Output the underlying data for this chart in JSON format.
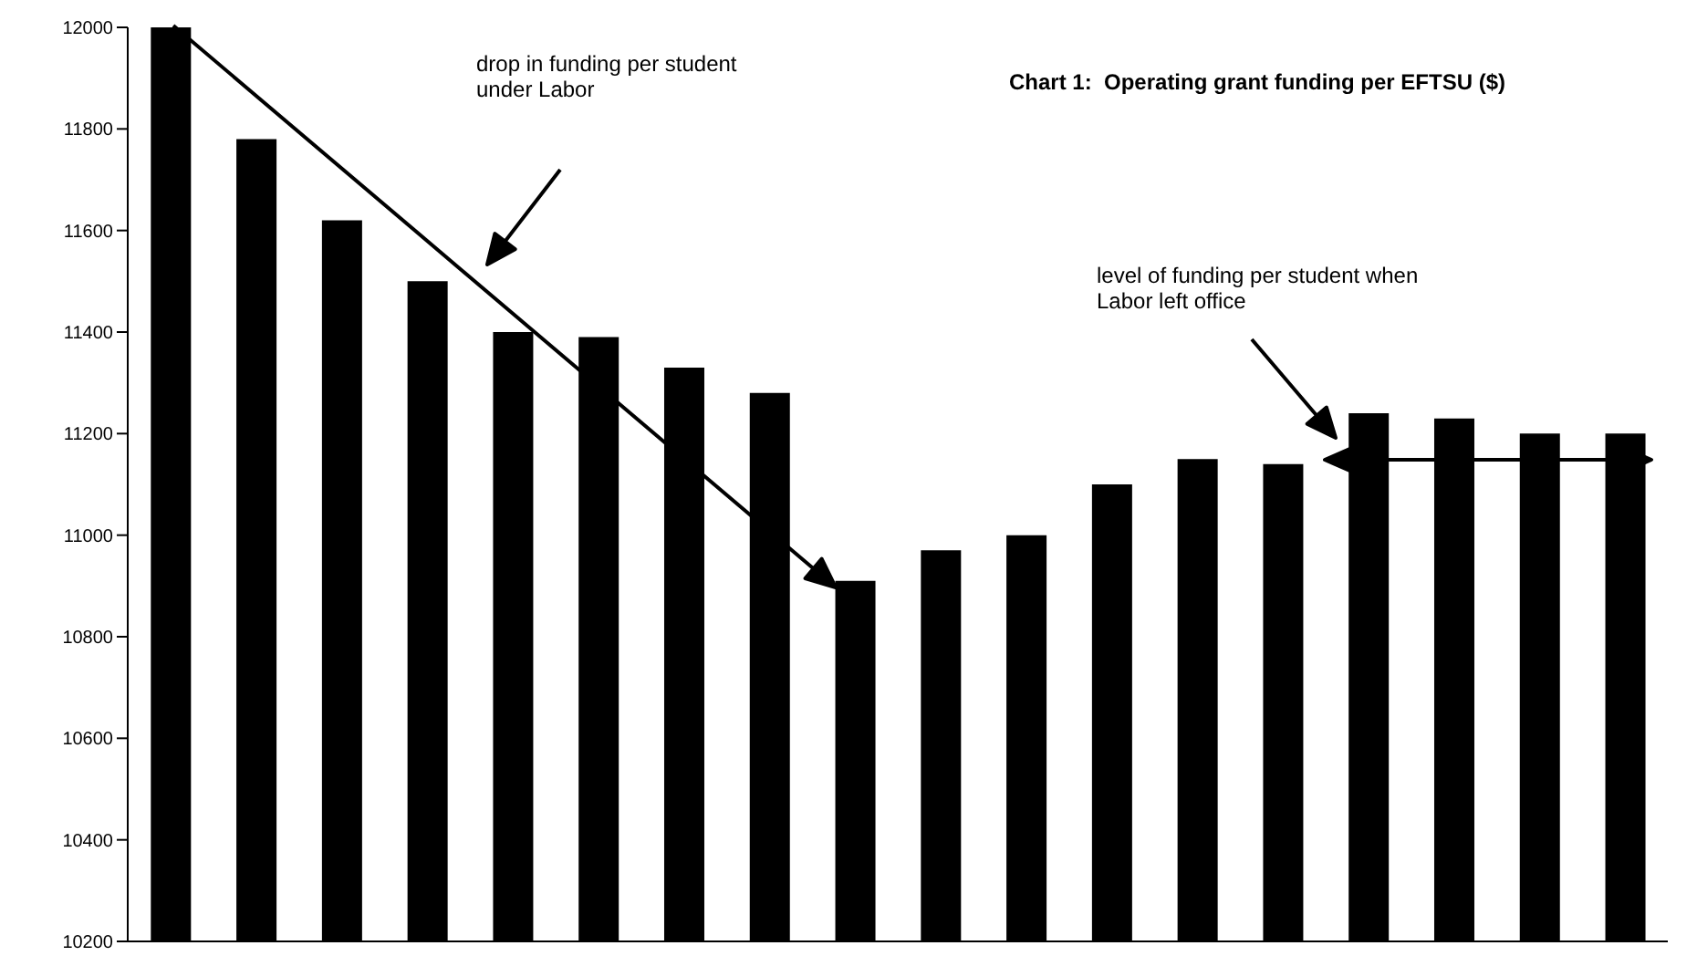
{
  "chart_data": {
    "type": "bar",
    "title": "Chart 1:  Operating grant funding per EFTSU ($)",
    "annotations": [
      "drop in funding per student under Labor",
      "level of funding per student when Labor left office"
    ],
    "categories": [
      null,
      null,
      null,
      null,
      null,
      null,
      null,
      null,
      null,
      null,
      null,
      null,
      null,
      null,
      null,
      null,
      null,
      null
    ],
    "values": [
      12000,
      11780,
      11620,
      11500,
      11400,
      11390,
      11330,
      11280,
      10910,
      10970,
      11000,
      11100,
      11150,
      11140,
      11240,
      11230,
      11200,
      11200
    ],
    "color": "#000000",
    "ylim": [
      10200,
      12000
    ],
    "yticks": [
      10200,
      10400,
      10600,
      10800,
      11000,
      11200,
      11400,
      11600,
      11800,
      12000
    ],
    "grid": false,
    "tick_labels": "y"
  }
}
